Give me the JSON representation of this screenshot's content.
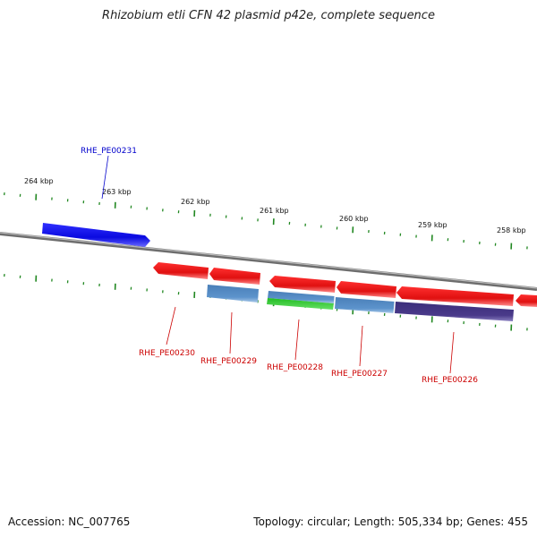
{
  "title": "Rhizobium etli CFN 42 plasmid p42e, complete sequence",
  "footer": {
    "accession": "Accession: NC_007765",
    "summary": "Topology: circular; Length: 505,334 bp; Genes: 455"
  },
  "scale_labels": [
    "264 kbp",
    "263 kbp",
    "262 kbp",
    "261 kbp",
    "260 kbp",
    "259 kbp",
    "258 kbp"
  ],
  "gene_labels": [
    {
      "text": "RHE_PE00231",
      "color": "#0000cc"
    },
    {
      "text": "RHE_PE00230",
      "color": "#cc0000"
    },
    {
      "text": "RHE_PE00229",
      "color": "#cc0000"
    },
    {
      "text": "RHE_PE00228",
      "color": "#cc0000"
    },
    {
      "text": "RHE_PE00227",
      "color": "#cc0000"
    },
    {
      "text": "RHE_PE00226",
      "color": "#cc0000"
    }
  ],
  "colors": {
    "backbone": "#7a7a7a",
    "ticks": "#228822",
    "forward_gene": "#1010e0",
    "reverse_gene": "#e81818",
    "feature_blue": "#5a8fc8",
    "feature_green": "#33cc33",
    "feature_purple": "#4a3a8a"
  }
}
